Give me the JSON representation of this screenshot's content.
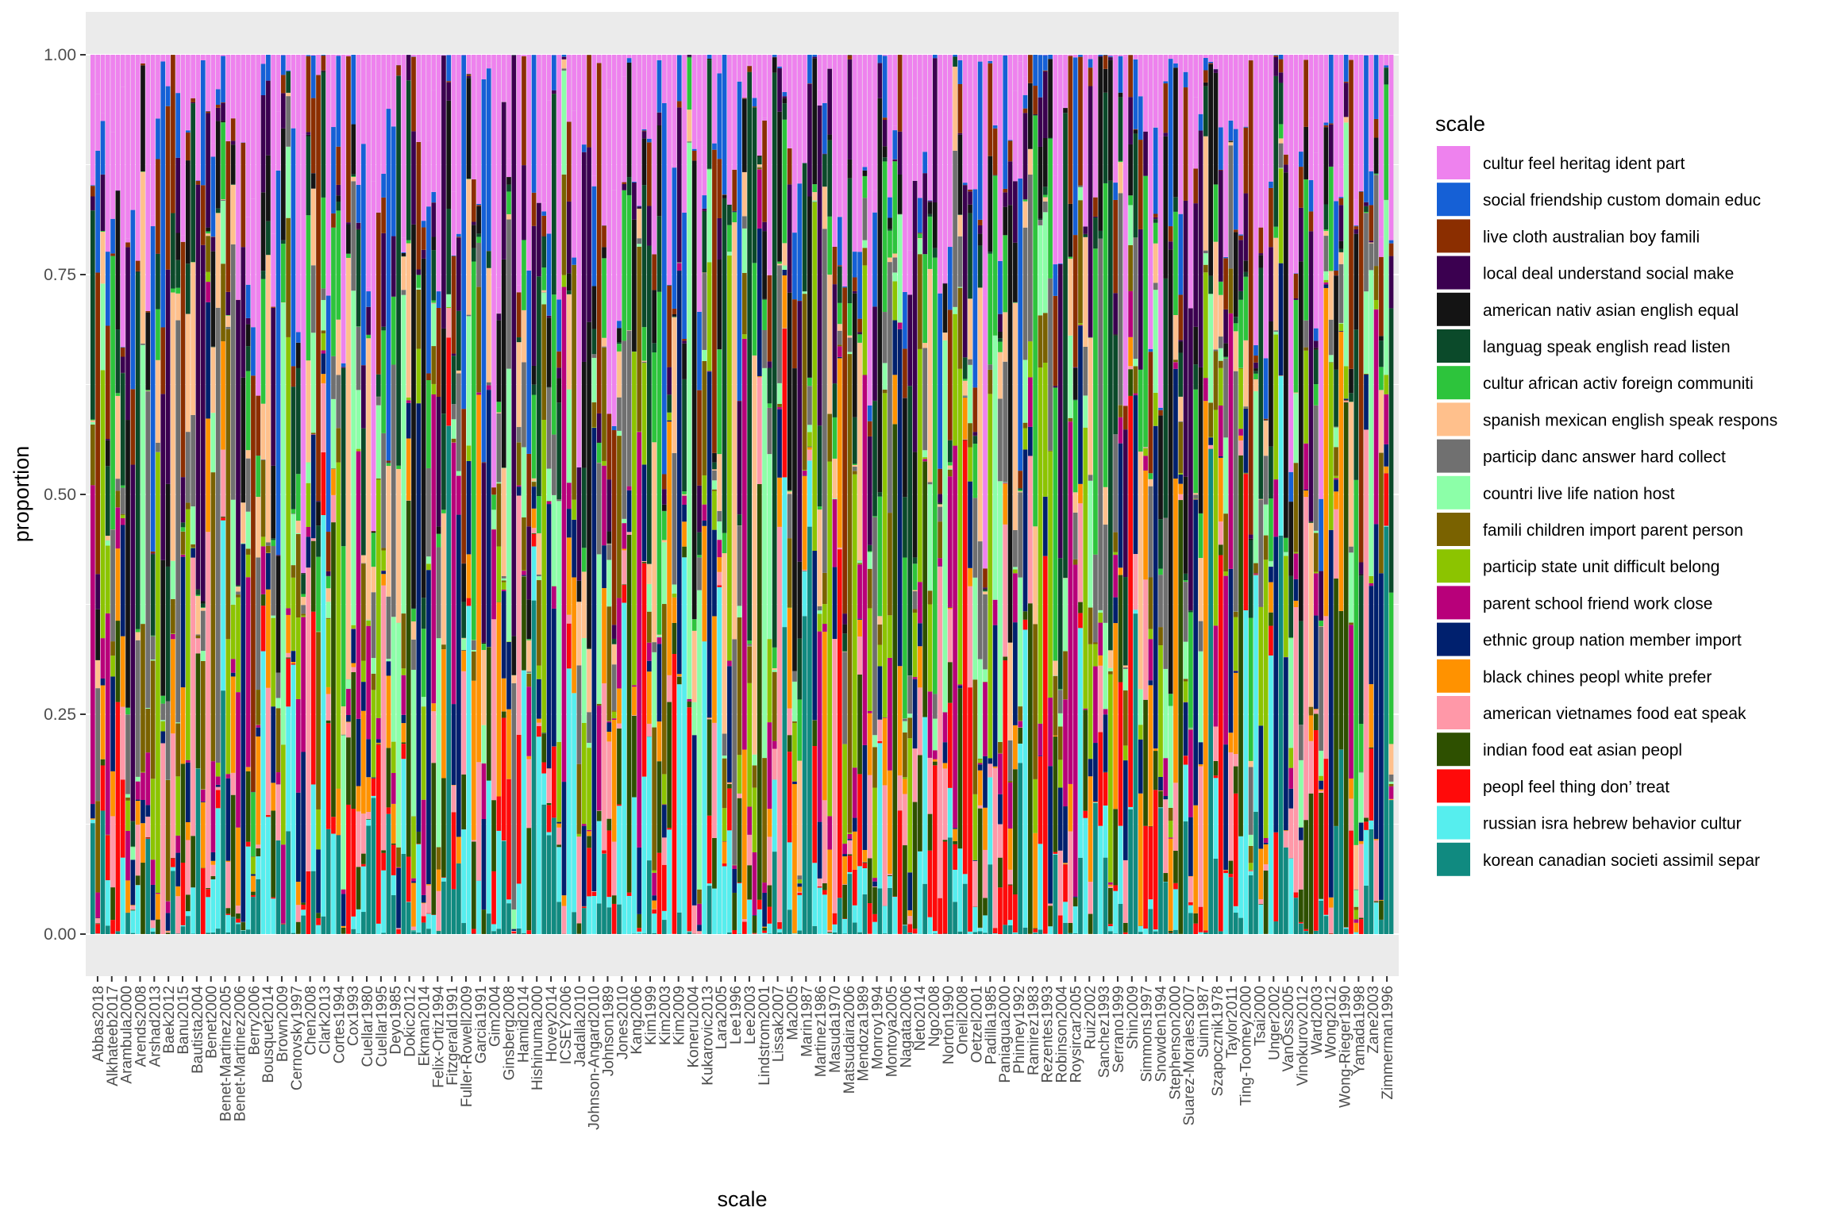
{
  "chart_data": {
    "type": "bar",
    "stacked": true,
    "xlabel": "scale",
    "ylabel": "proportion",
    "ylim": [
      0,
      1
    ],
    "y_ticks": [
      "0.00",
      "0.25",
      "0.50",
      "0.75",
      "1.00"
    ],
    "y_tick_values": [
      0,
      0.25,
      0.5,
      0.75,
      1.0
    ],
    "grid": true,
    "legend": {
      "title": "scale",
      "position": "right"
    },
    "categories": [
      "Abbas2018",
      "Alkhateeb2017",
      "Arambula2000",
      "Arends2008",
      "Arshad2013",
      "Baek2012",
      "Banu2015",
      "Bautista2004",
      "Benet2000",
      "Benet-Martinez2005",
      "Benet-Martinez2006",
      "Berry2006",
      "Bousquet2014",
      "Brown2009",
      "Cernovsky1997",
      "Chen2008",
      "Clark2013",
      "Cortes1994",
      "Cox1993",
      "Cuellar1980",
      "Cuellar1995",
      "Deyo1985",
      "Dokic2012",
      "Ekman2014",
      "Felix-Ortiz1994",
      "Fitzgerald1991",
      "Fuller-Rowell2009",
      "Garcia1991",
      "Gim2004",
      "Ginsberg2008",
      "Hamid2014",
      "Hishinuma2000",
      "Hovey2014",
      "ICSEY2006",
      "Jadalla2010",
      "Johnson-Angard2010",
      "Johnson1989",
      "Jones2010",
      "Kang2006",
      "Kim1999",
      "Kim2003",
      "Kim2009",
      "Koneru2004",
      "Kukarovic2013",
      "Lara2005",
      "Lee1996",
      "Lee2003",
      "Lindstrom2001",
      "Lissak2007",
      "Ma2005",
      "Marin1987",
      "Martinez1986",
      "Masuda1970",
      "Matsudaira2006",
      "Mendoza1989",
      "Monroy1994",
      "Montoya2005",
      "Nagata2006",
      "Neto2014",
      "Ngo2008",
      "Norton1990",
      "Oneil2008",
      "Oetzel2001",
      "Padilla1985",
      "Paniagua2000",
      "Phinney1992",
      "Ramirez1983",
      "Rezentes1993",
      "Robinson2004",
      "Roysircar2005",
      "Ruiz2002",
      "Sanchez1993",
      "Serrano1999",
      "Shin2009",
      "Simmons1997",
      "Snowden1994",
      "Stephenson2000",
      "Suarez-Morales2007",
      "Suinn1987",
      "Szapocznik1978",
      "Taylor2011",
      "Ting-Toomey2000",
      "Tsai2000",
      "Unger2002",
      "VanOss2005",
      "Vinokurov2012",
      "Ward2003",
      "Wong2012",
      "Wong-Rieger1990",
      "Yamada1998",
      "Zane2003",
      "Zimmerman1996"
    ],
    "series": [
      {
        "name": "cultur feel heritag ident part",
        "color": "#EE82EE"
      },
      {
        "name": "social friendship custom domain educ",
        "color": "#1560D6"
      },
      {
        "name": "live cloth australian boy famili",
        "color": "#8B2E00"
      },
      {
        "name": "local deal understand social make",
        "color": "#3B0050"
      },
      {
        "name": "american nativ asian english equal",
        "color": "#141414"
      },
      {
        "name": "languag speak english read listen",
        "color": "#0B4A2A"
      },
      {
        "name": "cultur african activ foreign communiti",
        "color": "#2DC43C"
      },
      {
        "name": "spanish mexican english speak respons",
        "color": "#FFC08C"
      },
      {
        "name": "particip danc answer hard collect",
        "color": "#707070"
      },
      {
        "name": "countri live life nation host",
        "color": "#8CFFA8"
      },
      {
        "name": "famili children import parent person",
        "color": "#7A6200"
      },
      {
        "name": "particip state unit difficult belong",
        "color": "#8CC400"
      },
      {
        "name": "parent school friend work close",
        "color": "#B8007A"
      },
      {
        "name": "ethnic group nation member import",
        "color": "#00206E"
      },
      {
        "name": "black chines peopl white prefer",
        "color": "#FF9200"
      },
      {
        "name": "american vietnames food eat speak",
        "color": "#FF98A8"
      },
      {
        "name": "indian food eat asian peopl",
        "color": "#2E5000"
      },
      {
        "name": "peopl feel thing don’ treat",
        "color": "#FF0A0A"
      },
      {
        "name": "russian isra hebrew behavior cultur",
        "color": "#56EEEE"
      },
      {
        "name": "korean canadian societi assimil separ",
        "color": "#108A80"
      }
    ]
  }
}
